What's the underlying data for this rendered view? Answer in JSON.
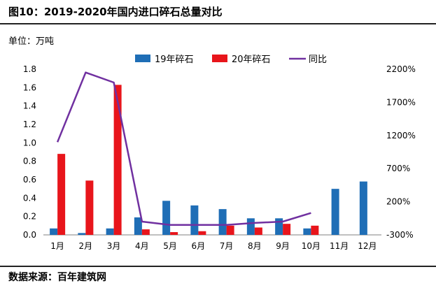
{
  "header": {
    "title": "图10：2019-2020年国内进口碎石总量对比"
  },
  "unit_label": "单位：万吨",
  "footer": {
    "source": "数据来源：百年建筑网"
  },
  "chart_data": {
    "type": "bar",
    "categories": [
      "1月",
      "2月",
      "3月",
      "4月",
      "5月",
      "6月",
      "7月",
      "8月",
      "9月",
      "10月",
      "11月",
      "12月"
    ],
    "series": [
      {
        "name": "19年碎石",
        "type": "bar",
        "axis": "left",
        "color": "#1f6eb6",
        "values": [
          0.07,
          0.02,
          0.07,
          0.19,
          0.37,
          0.32,
          0.28,
          0.18,
          0.18,
          0.07,
          0.5,
          0.58
        ]
      },
      {
        "name": "20年碎石",
        "type": "bar",
        "axis": "left",
        "color": "#e8151b",
        "values": [
          0.88,
          0.59,
          1.63,
          0.06,
          0.03,
          0.04,
          0.1,
          0.08,
          0.12,
          0.1,
          null,
          null
        ]
      },
      {
        "name": "同比",
        "type": "line",
        "axis": "right",
        "color": "#7030a0",
        "values": [
          1100,
          2150,
          2000,
          -100,
          -150,
          -150,
          -150,
          -120,
          -100,
          30,
          null,
          null
        ]
      }
    ],
    "y_left": {
      "min": 0,
      "max": 1.8,
      "ticks": [
        "0.0",
        "0.2",
        "0.4",
        "0.6",
        "0.8",
        "1.0",
        "1.2",
        "1.4",
        "1.6",
        "1.8"
      ]
    },
    "y_right": {
      "min": -300,
      "max": 2200,
      "ticks": [
        "-300%",
        "200%",
        "700%",
        "1200%",
        "1700%",
        "2200%"
      ]
    },
    "legend_position": "top-center",
    "grid": false
  }
}
